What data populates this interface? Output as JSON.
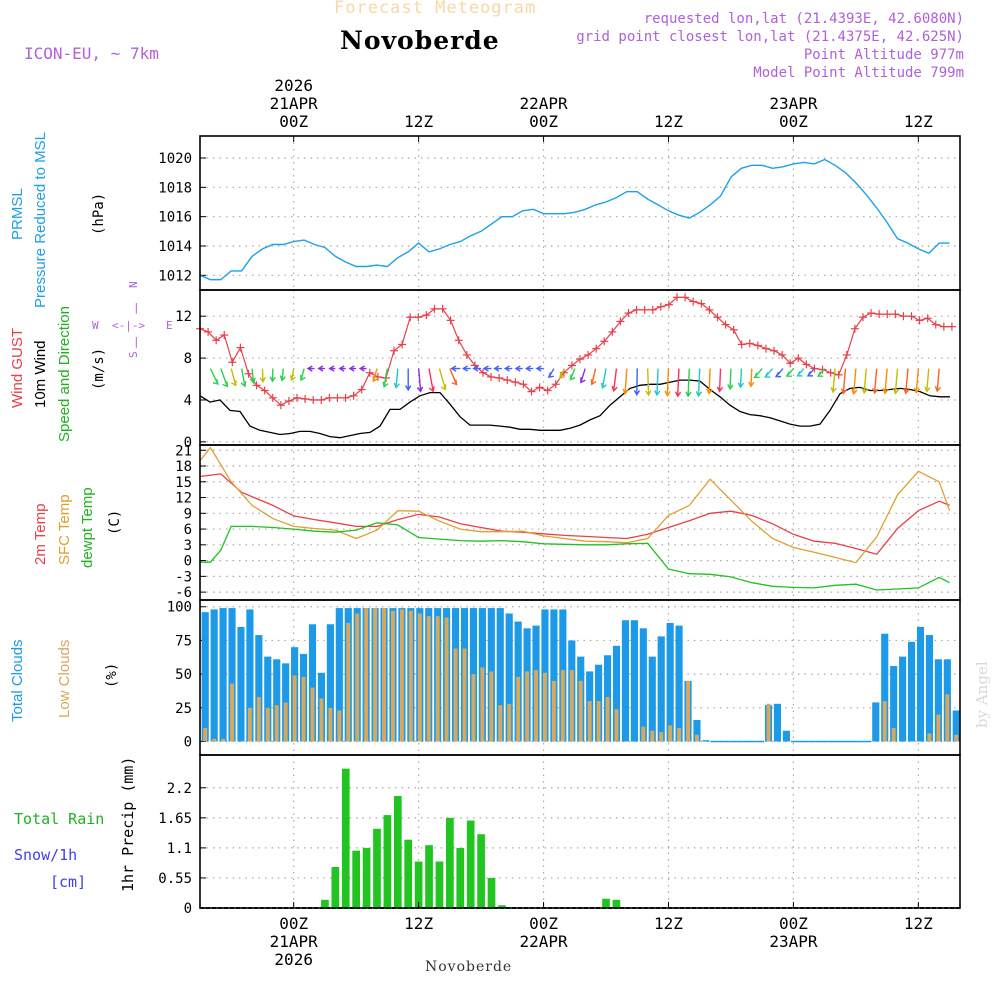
{
  "header": {
    "subtitle": "Forecast Meteogram",
    "title": "Novoberde",
    "model": "ICON-EU, ~ 7km",
    "requested": "requested lon,lat (21.4393E, 42.6080N)",
    "gridpoint": "grid point closest lon,lat (21.4375E, 42.625N)",
    "point_altitude": "Point Altitude 977m",
    "model_altitude": "Model Point Altitude 799m"
  },
  "top_axis": [
    {
      "l1": "2026",
      "l2": "21APR",
      "l3": "00Z"
    },
    {
      "l1": "",
      "l2": "",
      "l3": "12Z"
    },
    {
      "l1": "",
      "l2": "22APR",
      "l3": "00Z"
    },
    {
      "l1": "",
      "l2": "",
      "l3": "12Z"
    },
    {
      "l1": "",
      "l2": "23APR",
      "l3": "00Z"
    },
    {
      "l1": "",
      "l2": "",
      "l3": "12Z"
    }
  ],
  "bottom_axis": [
    {
      "l1": "00Z",
      "l2": "21APR",
      "l3": "2026"
    },
    {
      "l1": "12Z",
      "l2": "",
      "l3": ""
    },
    {
      "l1": "00Z",
      "l2": "22APR",
      "l3": ""
    },
    {
      "l1": "12Z",
      "l2": "",
      "l3": ""
    },
    {
      "l1": "00Z",
      "l2": "23APR",
      "l3": ""
    },
    {
      "l1": "12Z",
      "l2": "",
      "l3": ""
    }
  ],
  "bottom_name": "Novoberde",
  "signature": "by Angel",
  "panels": {
    "pressure": {
      "label1": "PRMSL",
      "label2": "Pressure Reduced to MSL",
      "unit": "(hPa)",
      "color": "#1ea0e8"
    },
    "wind": {
      "label_gust": "Wind GUST",
      "label_wind": "10m Wind",
      "label_dir": "Speed and Direction",
      "unit": "(m/s)",
      "compass": {
        "n": "N",
        "s": "S",
        "w": "W",
        "e": "E",
        "arrow_h": "<-|->",
        "arrow_v": "|"
      }
    },
    "temp": {
      "label_t2m": "2m Temp",
      "label_sfc": "SFC Temp",
      "label_dew": "dewpt Temp",
      "unit": "(C)"
    },
    "clouds": {
      "label_total": "Total Clouds",
      "label_low": "Low Clouds",
      "unit": "(%)"
    },
    "precip": {
      "label_rain": "Total  Rain",
      "label_snow": "Snow/1h",
      "label_cm": "[cm]",
      "ylabel": "1hr Precip (mm)"
    }
  },
  "colors": {
    "pressure": "#1ea0e8",
    "gust": "#e8404a",
    "wind": "#000000",
    "t2m": "#e8404a",
    "sfc": "#e0a030",
    "dew": "#22c022",
    "total_cloud": "#1c9ae8",
    "low_cloud": "#d6a860",
    "rain": "#22c422",
    "snow": "#4040e0",
    "compass": "#b060d8",
    "green_label": "#22b022"
  },
  "chart_data": [
    {
      "type": "line",
      "title": "PRMSL Pressure Reduced to MSL",
      "ylabel": "(hPa)",
      "xlabel": "",
      "x_hours_range": [
        -9,
        54
      ],
      "ylim": [
        1011,
        1021.5
      ],
      "yticks": [
        1012,
        1014,
        1016,
        1018,
        1020
      ],
      "series": [
        {
          "name": "PRMSL",
          "x": [
            -9,
            -8,
            -7,
            -6,
            -5,
            -4,
            -3,
            -2,
            -1,
            0,
            1,
            2,
            3,
            4,
            5,
            6,
            7,
            8,
            9,
            10,
            11,
            12,
            13,
            14,
            15,
            16,
            17,
            18,
            19,
            20,
            21,
            22,
            23,
            24,
            25,
            26,
            27,
            28,
            29,
            30,
            31,
            32,
            33,
            34,
            35,
            36,
            37,
            38,
            39,
            40,
            41,
            42,
            43,
            44,
            45,
            46,
            47,
            48,
            49,
            50,
            51,
            52,
            53
          ],
          "values": [
            1012.0,
            1011.7,
            1011.7,
            1012.3,
            1012.3,
            1013.3,
            1013.8,
            1014.1,
            1014.1,
            1014.3,
            1014.4,
            1014.1,
            1013.9,
            1013.3,
            1012.9,
            1012.6,
            1012.6,
            1012.7,
            1012.6,
            1013.2,
            1013.6,
            1014.2,
            1013.6,
            1013.8,
            1014.1,
            1014.3,
            1014.7,
            1015.0,
            1015.5,
            1016.0,
            1016.0,
            1016.4,
            1016.5,
            1016.2,
            1016.2,
            1016.2,
            1016.3,
            1016.5,
            1016.8,
            1017.0,
            1017.3,
            1017.7,
            1017.7,
            1017.2,
            1016.8,
            1016.4,
            1016.1,
            1015.9,
            1016.3,
            1016.8,
            1017.4,
            1018.7,
            1019.3,
            1019.5,
            1019.5,
            1019.3,
            1019.4,
            1019.6,
            1019.7,
            1019.6,
            1019.9,
            1019.5,
            1019.0
          ]
        }
      ],
      "series_tail": {
        "x": [
          51,
          52,
          53,
          54,
          55,
          56,
          57,
          58,
          59,
          60,
          61,
          62,
          63
        ],
        "values": [
          1019.9,
          1019.5,
          1019.0,
          1018.3,
          1017.5,
          1016.6,
          1015.6,
          1014.5,
          1014.2,
          1013.8,
          1013.5,
          1014.2,
          1014.2
        ]
      }
    },
    {
      "type": "line",
      "title": "Wind GUST / 10m Wind Speed and Direction",
      "ylabel": "(m/s)",
      "ylim": [
        -0.3,
        14.5
      ],
      "yticks": [
        0,
        4,
        8,
        12
      ],
      "series": [
        {
          "name": "Wind GUST",
          "x_start": -9,
          "values": [
            10.8,
            10.5,
            9.7,
            10.2,
            7.6,
            9.0,
            6.5,
            5.4,
            4.9,
            4.2,
            3.5,
            3.9,
            4.2,
            4.1,
            4.0,
            4.0,
            4.2,
            4.2,
            4.2,
            4.4,
            5.0,
            6.6,
            6.2,
            6.1,
            8.7,
            9.3,
            11.9,
            11.9,
            12.1,
            12.7,
            12.7,
            11.6,
            9.7,
            8.3,
            7.3,
            6.6,
            6.2,
            6.1,
            5.9,
            5.7,
            5.5,
            4.8,
            5.2,
            4.9,
            5.5,
            6.6,
            7.3,
            7.9,
            8.3,
            8.9,
            9.6,
            10.5,
            11.5,
            12.3,
            12.6,
            12.6,
            12.6,
            12.9,
            13.1,
            13.8,
            13.8,
            13.4,
            13.2,
            12.6,
            11.9,
            11.2,
            10.7,
            9.3,
            9.4,
            9.2,
            8.9,
            8.7,
            8.3,
            7.5,
            8.0,
            7.4,
            7.0,
            6.9,
            6.6,
            6.4,
            8.3,
            10.8,
            11.9,
            12.3,
            12.2,
            12.2,
            12.2,
            12.0,
            12.0,
            11.6,
            11.8,
            11.2,
            11.0,
            11.0
          ]
        },
        {
          "name": "10m Wind",
          "x_start": -9,
          "values": [
            4.4,
            3.8,
            4.0,
            3.0,
            2.9,
            1.5,
            1.1,
            0.9,
            0.7,
            0.8,
            1.0,
            1.0,
            0.8,
            0.5,
            0.4,
            0.6,
            0.8,
            0.9,
            1.5,
            3.1,
            3.1,
            3.8,
            4.4,
            4.7,
            4.7,
            3.6,
            2.4,
            1.6,
            1.6,
            1.6,
            1.5,
            1.4,
            1.2,
            1.2,
            1.1,
            1.1,
            1.1,
            1.3,
            1.6,
            2.1,
            2.5,
            3.5,
            4.3,
            5.1,
            5.4,
            5.5,
            5.5,
            5.7,
            5.9,
            5.9,
            5.8,
            5.0,
            4.3,
            3.5,
            2.9,
            2.6,
            2.5,
            2.3,
            2.0,
            1.7,
            1.5,
            1.5,
            1.7,
            3.0,
            4.6,
            5.1,
            5.2,
            4.9,
            4.9,
            5.0,
            5.1,
            5.0,
            4.8,
            4.4,
            4.3,
            4.3
          ]
        }
      ]
    },
    {
      "type": "line",
      "title": "2m Temp / SFC Temp / dewpt Temp",
      "ylabel": "(C)",
      "ylim": [
        -7.5,
        22
      ],
      "yticks": [
        -6,
        -3,
        0,
        3,
        6,
        9,
        12,
        15,
        18,
        21
      ],
      "series": [
        {
          "name": "2m Temp",
          "x": [
            -9,
            -7,
            -5,
            -2,
            0,
            2,
            4,
            6,
            8,
            10,
            12,
            14,
            16,
            18,
            20,
            22,
            24,
            26,
            28,
            30,
            32,
            34,
            36,
            38,
            40,
            42,
            44,
            46,
            48,
            50,
            52,
            54,
            56,
            58,
            60,
            62,
            63
          ],
          "values": [
            16.0,
            16.5,
            13.0,
            10.5,
            8.5,
            7.8,
            7.2,
            6.5,
            6.5,
            7.8,
            8.8,
            8.3,
            7.0,
            6.3,
            5.6,
            5.4,
            5.1,
            4.8,
            4.6,
            4.4,
            4.2,
            5.0,
            6.3,
            7.6,
            9.0,
            9.4,
            8.6,
            7.0,
            5.0,
            3.7,
            3.3,
            2.3,
            1.2,
            6.1,
            9.5,
            11.3,
            10.5
          ]
        },
        {
          "name": "SFC Temp",
          "x": [
            -9,
            -8,
            -6,
            -4,
            -2,
            0,
            2,
            4,
            6,
            8,
            10,
            12,
            14,
            16,
            18,
            20,
            22,
            24,
            26,
            28,
            30,
            32,
            34,
            36,
            38,
            40,
            42,
            44,
            46,
            48,
            50,
            52,
            54,
            56,
            58,
            60,
            62,
            63
          ],
          "values": [
            19.0,
            21.5,
            15.0,
            10.5,
            8.0,
            6.5,
            6.1,
            5.8,
            4.2,
            5.8,
            9.5,
            9.4,
            7.5,
            6.0,
            5.5,
            5.5,
            5.6,
            4.7,
            4.2,
            3.7,
            3.6,
            3.4,
            4.2,
            8.6,
            10.5,
            15.5,
            11.5,
            7.5,
            4.2,
            2.5,
            1.6,
            0.6,
            -0.4,
            4.5,
            12.5,
            17.0,
            15.0,
            9.5
          ]
        },
        {
          "name": "dewpt Temp",
          "x": [
            -9,
            -8,
            -7,
            -6,
            -4,
            -2,
            0,
            2,
            4,
            6,
            8,
            10,
            12,
            14,
            16,
            18,
            20,
            22,
            24,
            26,
            28,
            30,
            32,
            34,
            36,
            38,
            40,
            42,
            44,
            46,
            48,
            50,
            52,
            54,
            56,
            58,
            60,
            62,
            63
          ],
          "values": [
            -0.3,
            -0.3,
            2.0,
            6.5,
            6.5,
            6.3,
            6.0,
            5.6,
            5.4,
            5.8,
            7.2,
            6.8,
            4.4,
            4.1,
            3.8,
            3.7,
            3.8,
            3.6,
            3.2,
            3.1,
            3.0,
            3.0,
            3.2,
            3.3,
            -1.6,
            -2.5,
            -2.6,
            -3.1,
            -4.2,
            -4.9,
            -5.1,
            -5.2,
            -4.7,
            -4.5,
            -5.6,
            -5.4,
            -5.2,
            -3.2,
            -4.2
          ]
        }
      ]
    },
    {
      "type": "bar",
      "title": "Total Clouds / Low Clouds",
      "ylabel": "(%)",
      "ylim": [
        -10,
        105
      ],
      "yticks": [
        0,
        25,
        50,
        75,
        100
      ],
      "series": [
        {
          "name": "Total Clouds",
          "x_start": -9,
          "values": [
            96,
            98,
            99,
            99,
            85,
            98,
            79,
            63,
            61,
            58,
            70,
            65,
            87,
            51,
            87,
            99,
            99,
            99,
            99,
            99,
            99,
            99,
            99,
            99,
            99,
            99,
            99,
            99,
            99,
            99,
            99,
            99,
            99,
            99,
            95,
            89,
            84,
            86,
            98,
            98,
            98,
            75,
            63,
            52,
            57,
            64,
            71,
            90,
            90,
            84,
            63,
            78,
            88,
            86,
            45,
            16,
            1,
            0,
            0,
            0,
            0,
            0,
            0,
            27,
            28,
            8,
            0,
            0,
            0,
            0,
            0,
            0,
            0,
            0,
            0,
            29,
            80,
            56,
            63,
            74,
            85,
            79,
            61,
            61,
            23
          ]
        },
        {
          "name": "Low Clouds",
          "x_start": -9,
          "values": [
            10,
            2,
            2,
            43,
            0,
            25,
            33,
            25,
            27,
            29,
            49,
            48,
            40,
            32,
            25,
            23,
            88,
            95,
            99,
            99,
            99,
            97,
            98,
            97,
            95,
            93,
            93,
            92,
            69,
            69,
            50,
            55,
            52,
            27,
            28,
            48,
            52,
            53,
            51,
            45,
            53,
            53,
            45,
            30,
            30,
            33,
            24,
            0,
            0,
            11,
            8,
            7,
            12,
            10,
            45,
            5,
            0,
            0,
            0,
            0,
            0,
            0,
            0,
            28,
            0,
            0,
            0,
            0,
            0,
            0,
            0,
            0,
            0,
            0,
            0,
            0,
            30,
            10,
            0,
            0,
            0,
            6,
            20,
            35,
            5
          ]
        }
      ]
    },
    {
      "type": "bar",
      "title": "1hr Precip (mm)",
      "ylabel": "1hr Precip (mm)",
      "ylim": [
        0,
        2.8
      ],
      "yticks": [
        0,
        0.55,
        1.1,
        1.65,
        2.2
      ],
      "ytick_labels": [
        "0",
        "0.55",
        "1.1",
        "1.65",
        "2.2"
      ],
      "series": [
        {
          "name": "Total Rain",
          "x": [
            -5,
            -4,
            -3,
            -2,
            -1,
            0,
            1,
            2,
            3,
            4,
            5,
            6,
            7,
            8,
            9,
            10,
            11,
            12,
            13,
            14,
            15,
            16,
            17,
            18,
            19,
            20,
            21,
            22,
            23,
            24,
            25,
            26,
            27,
            28,
            29,
            30,
            31,
            32,
            33,
            34,
            35
          ],
          "values": [
            0,
            0,
            0,
            0,
            0,
            0,
            0,
            0,
            0.15,
            0.75,
            2.55,
            1.05,
            1.1,
            1.45,
            1.7,
            2.05,
            1.25,
            0.85,
            1.15,
            0.85,
            1.65,
            1.1,
            1.6,
            1.35,
            0.55,
            0.05,
            0,
            0,
            0,
            0,
            0,
            0,
            0,
            0,
            0,
            0.17,
            0.15,
            0,
            0,
            0,
            0
          ]
        },
        {
          "name": "Snow/1h",
          "values": []
        }
      ]
    }
  ]
}
